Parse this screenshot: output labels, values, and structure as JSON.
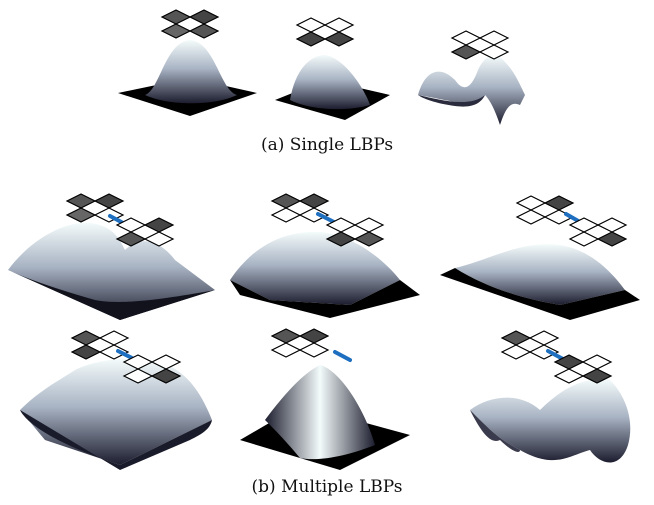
{
  "captions": {
    "single": "(a) Single LBPs",
    "multiple": "(b) Multiple LBPs"
  }
}
